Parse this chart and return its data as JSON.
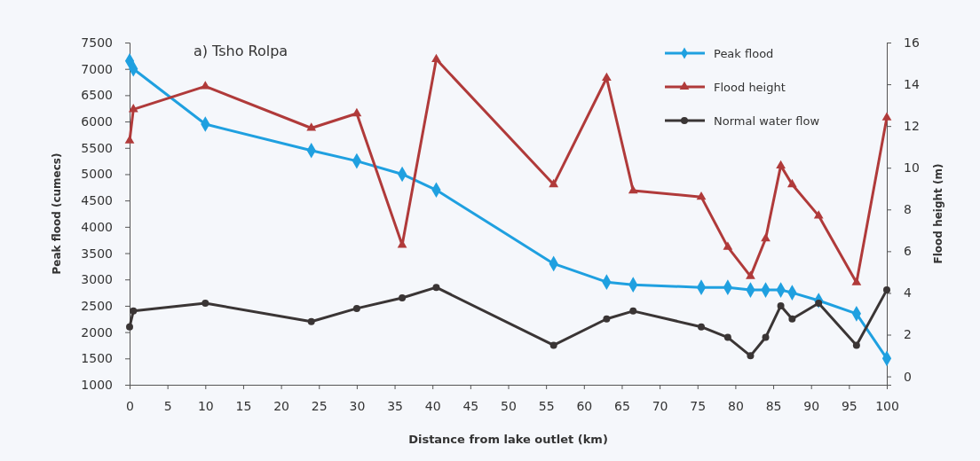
{
  "chart_data": {
    "type": "line",
    "title": "a) Tsho Rolpa",
    "xlabel": "Distance from lake outlet (km)",
    "ylabel": "Peak flood (cumecs)",
    "y2label": "Flood height (m)",
    "x": [
      0,
      0.5,
      10,
      24,
      30,
      36,
      40.5,
      56,
      63,
      66.5,
      75.5,
      79,
      82,
      84,
      86,
      87.5,
      91,
      96,
      100
    ],
    "series": [
      {
        "name": "Peak flood",
        "color": "#1fa0e0",
        "marker": "diamond",
        "values": [
          7150,
          7000,
          5950,
          5450,
          5250,
          5000,
          4700,
          3300,
          2950,
          2900,
          2850,
          2850,
          2800,
          2800,
          2800,
          2750,
          2600,
          2350,
          1500
        ]
      },
      {
        "name": "Flood height",
        "color": "#b03a3a",
        "marker": "triangle",
        "axis": "y2",
        "values": [
          11.3,
          12.8,
          13.9,
          11.9,
          12.6,
          6.3,
          15.2,
          9.2,
          14.3,
          8.9,
          8.6,
          6.2,
          4.8,
          6.6,
          10.1,
          9.2,
          7.7,
          4.5,
          12.4
        ]
      },
      {
        "name": "Normal water flow",
        "color": "#3a3535",
        "marker": "circle",
        "values": [
          2100,
          2400,
          2550,
          2200,
          2450,
          2650,
          2850,
          1750,
          2250,
          2400,
          2100,
          1900,
          1550,
          1900,
          2500,
          2250,
          2550,
          1750,
          2800
        ]
      }
    ],
    "xlim": [
      0,
      100
    ],
    "xticks": [
      0,
      5,
      10,
      15,
      20,
      25,
      30,
      35,
      40,
      45,
      50,
      55,
      60,
      65,
      70,
      75,
      80,
      85,
      90,
      95,
      100
    ],
    "ylim": [
      1000,
      7500
    ],
    "yticks": [
      1000,
      1500,
      2000,
      2500,
      3000,
      3500,
      4000,
      4500,
      5000,
      5500,
      6000,
      6500,
      7000,
      7500
    ],
    "y2lim": [
      -0.4,
      16
    ],
    "y2ticks": [
      0,
      2,
      4,
      6,
      8,
      10,
      12,
      14,
      16
    ],
    "grid": false,
    "legend": "top right"
  }
}
